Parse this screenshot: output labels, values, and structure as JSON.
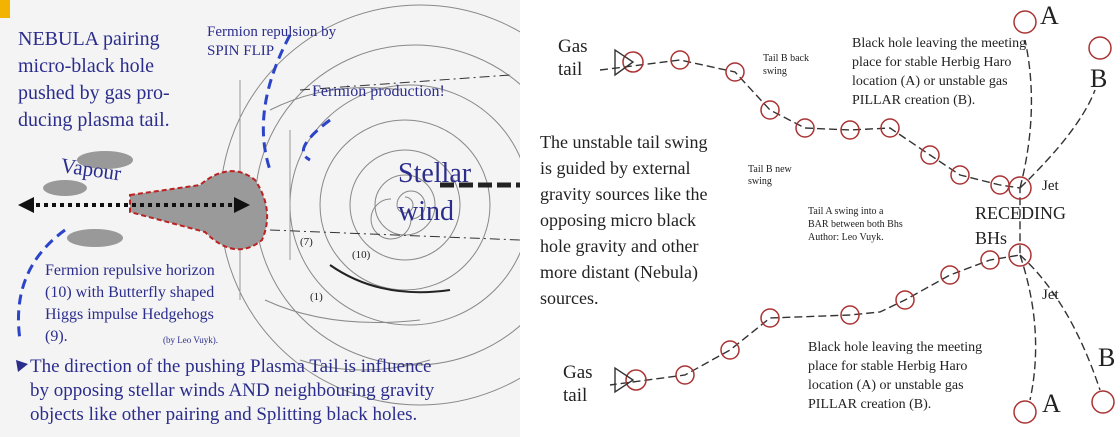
{
  "left_panel": {
    "intro": [
      "NEBULA pairing",
      "micro-black hole",
      "pushed by gas pro-",
      "ducing plasma tail."
    ],
    "spin_flip": [
      "Fermion repulsion by",
      "SPIN FLIP"
    ],
    "production": "Fermion production!",
    "vapour": "Vapour",
    "stellar_wind": [
      "Stellar",
      "wind"
    ],
    "horizon": [
      "Fermion repulsive horizon",
      "(10) with Butterfly shaped",
      "Higgs impulse Hedgehogs",
      "(9)."
    ],
    "credit": "(by Leo Vuyk).",
    "direction": [
      "The direction of  the pushing Plasma Tail is influence",
      "by opposing stellar winds AND neighbouring gravity",
      "objects like other pairing and Splitting black holes."
    ],
    "numbers": [
      "(7)",
      "(10)",
      "(1)"
    ]
  },
  "right_panel": {
    "gas_tail_top": [
      "Gas",
      "tail"
    ],
    "tail_b_back": [
      "Tail B back",
      "swing"
    ],
    "leaving_top": [
      "Black hole leaving the meeting",
      "place for stable Herbig Haro",
      "location (A) or unstable gas",
      "PILLAR creation (B)."
    ],
    "unstable": [
      "The unstable tail swing",
      "is guided by external",
      "gravity sources like the",
      "opposing micro black",
      "hole gravity and other",
      "more distant (Nebula)",
      "sources."
    ],
    "tail_b_new": [
      "Tail B new",
      "swing"
    ],
    "tail_a": [
      "Tail A swing into a",
      "BAR between both Bhs",
      "Author: Leo Vuyk."
    ],
    "receding": [
      "RECEDING",
      "BHs"
    ],
    "jets": [
      "Jet",
      "Jet"
    ],
    "markers": [
      "A",
      "B",
      "B",
      "A"
    ],
    "leaving_bottom": [
      "Black hole leaving the meeting",
      "place for stable Herbig Haro",
      "location (A) or unstable gas",
      "PILLAR creation (B)."
    ],
    "gas_tail_bottom": [
      "Gas",
      "tail"
    ]
  }
}
